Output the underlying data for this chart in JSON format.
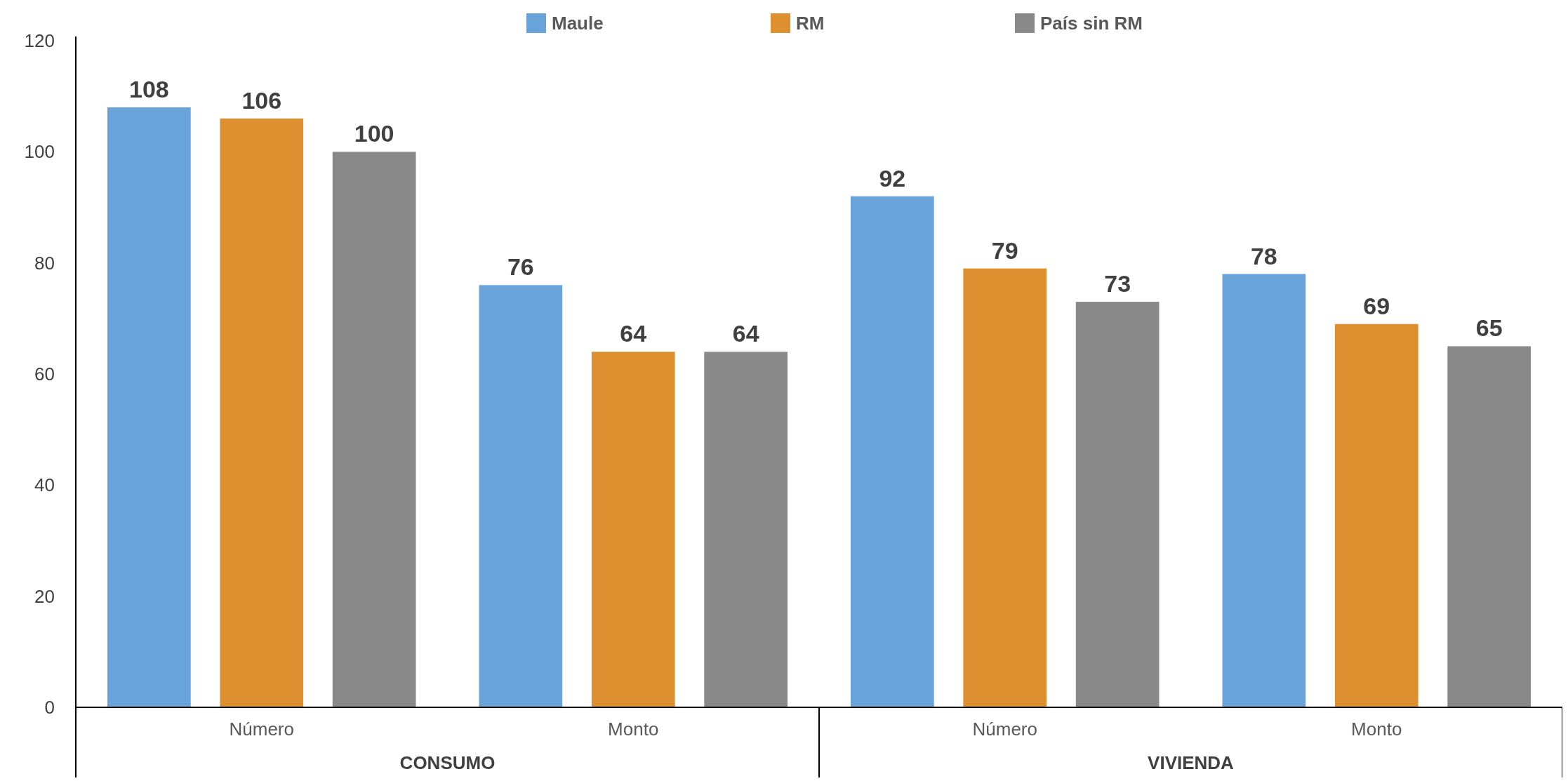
{
  "chart_data": {
    "type": "bar",
    "categories": [
      "Número",
      "Monto",
      "Número",
      "Monto"
    ],
    "series": [
      {
        "name": "Maule",
        "color": "#68a4da",
        "values": [
          108,
          76,
          92,
          78
        ]
      },
      {
        "name": "RM",
        "color": "#de9030",
        "values": [
          106,
          64,
          79,
          69
        ]
      },
      {
        "name": "País sin RM",
        "color": "#898989",
        "values": [
          100,
          64,
          73,
          65
        ]
      }
    ],
    "ylim": [
      0,
      120
    ],
    "yticks": [
      0,
      20,
      40,
      60,
      80,
      100,
      120
    ],
    "grid": false,
    "legend": "top",
    "data_labels": true,
    "annotations": [
      "CONSUMO",
      "VIVIENDA"
    ]
  }
}
